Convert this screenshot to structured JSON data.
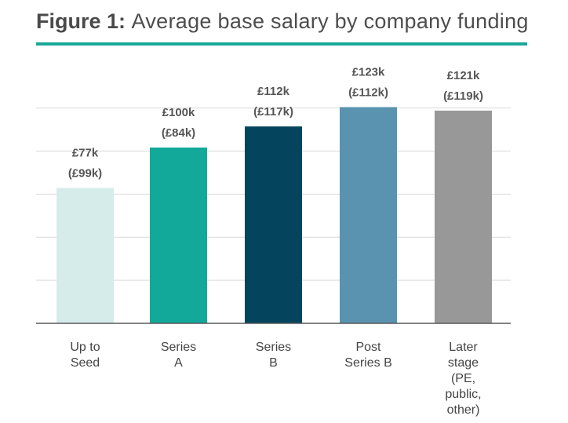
{
  "title": {
    "prefix": "Figure 1:",
    "text": "Average base salary by company funding"
  },
  "colors": {
    "accent": "#1aa79a",
    "title_text": "#4d4d4d",
    "grid": "#d9d9d9",
    "axis": "#595959"
  },
  "chart_data": {
    "type": "bar",
    "categories": [
      [
        "Up to",
        "Seed"
      ],
      [
        "Series",
        "A"
      ],
      [
        "Series",
        "B"
      ],
      [
        "Post",
        "Series B"
      ],
      [
        "Later",
        "stage",
        "(PE,",
        "public,",
        "other)"
      ]
    ],
    "values": [
      77,
      100,
      112,
      123,
      121
    ],
    "value_labels": [
      "£77k",
      "£100k",
      "£112k",
      "£123k",
      "£121k"
    ],
    "secondary_labels": [
      "(£99k)",
      "(£84k)",
      "(£117k)",
      "(£112k)",
      "(£119k)"
    ],
    "bar_colors": [
      "#d6ecea",
      "#12a89a",
      "#04445c",
      "#5a93b0",
      "#989898"
    ],
    "ylim": [
      0,
      125
    ],
    "grid": true,
    "xlabel": "",
    "ylabel": ""
  }
}
